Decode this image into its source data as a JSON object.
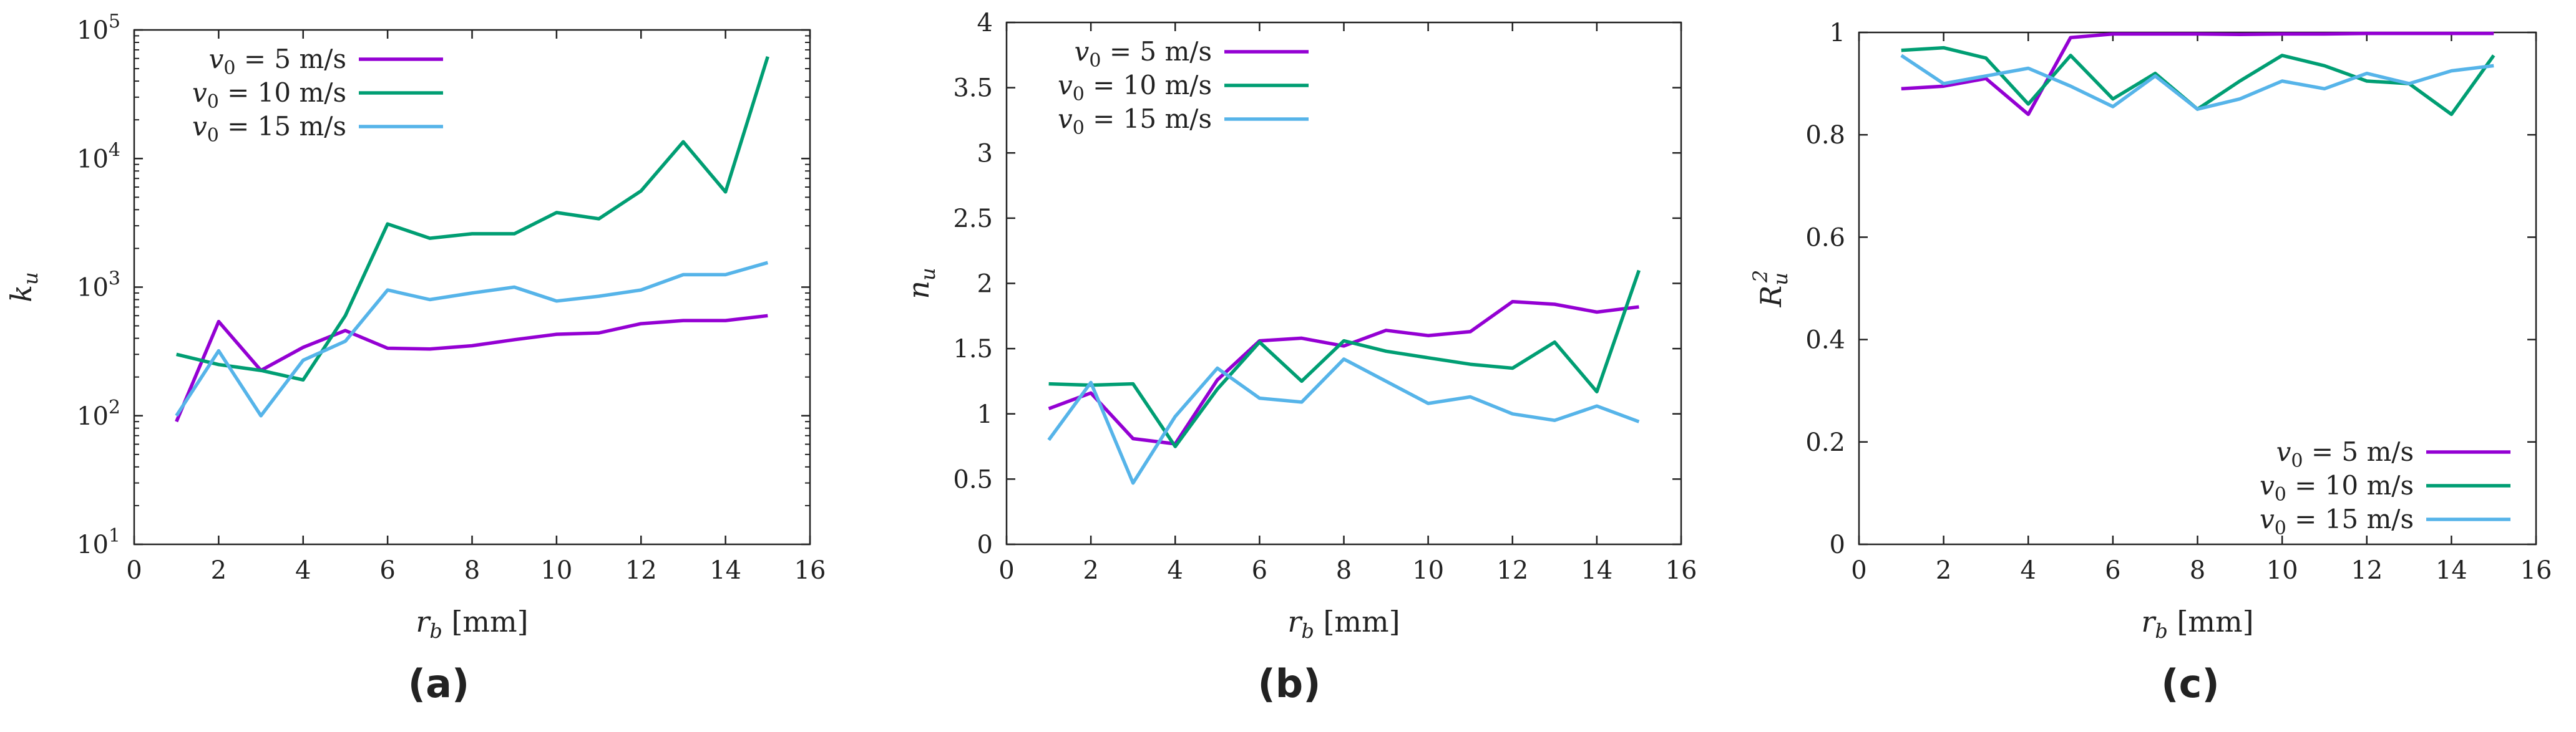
{
  "figure": {
    "colors": {
      "v5": "#9400D3",
      "v10": "#009E73",
      "v15": "#56B4E9",
      "axis": "#222222"
    }
  },
  "chart_data": [
    {
      "type": "line",
      "panel": "(a)",
      "xlabel": "r_b [mm]",
      "xlabel_main": "r",
      "xlabel_sub": "b",
      "xlabel_unit": " [mm]",
      "ylabel": "k_u",
      "ylabel_main": "k",
      "ylabel_sub": "u",
      "xlim": [
        0,
        16
      ],
      "ylim": [
        10,
        100000
      ],
      "yscale": "log",
      "xticks": [
        "0",
        "2",
        "4",
        "6",
        "8",
        "10",
        "12",
        "14",
        "16"
      ],
      "yticks": [
        {
          "base": "10",
          "exp": "1"
        },
        {
          "base": "10",
          "exp": "2"
        },
        {
          "base": "10",
          "exp": "3"
        },
        {
          "base": "10",
          "exp": "4"
        },
        {
          "base": "10",
          "exp": "5"
        }
      ],
      "legend_position": "top-left",
      "x": [
        1,
        2,
        3,
        4,
        5,
        6,
        7,
        8,
        9,
        10,
        11,
        12,
        13,
        14,
        15
      ],
      "series": [
        {
          "name": "v0 = 5 m/s",
          "label_main": "v",
          "label_sub": "0",
          "label_rest": " = 5 m/s",
          "color_key": "v5",
          "values": [
            90,
            540,
            225,
            340,
            460,
            335,
            330,
            350,
            390,
            430,
            440,
            520,
            550,
            550,
            600
          ]
        },
        {
          "name": "v0 = 10 m/s",
          "label_main": "v",
          "label_sub": "0",
          "label_rest": " = 10 m/s",
          "color_key": "v10",
          "values": [
            300,
            250,
            225,
            190,
            600,
            3100,
            2400,
            2600,
            2600,
            3800,
            3400,
            5600,
            13500,
            5500,
            62000
          ]
        },
        {
          "name": "v0 = 15 m/s",
          "label_main": "v",
          "label_sub": "0",
          "label_rest": " = 15 m/s",
          "color_key": "v15",
          "values": [
            100,
            320,
            100,
            270,
            380,
            950,
            800,
            900,
            1000,
            780,
            850,
            950,
            1250,
            1250,
            1550
          ]
        }
      ]
    },
    {
      "type": "line",
      "panel": "(b)",
      "xlabel": "r_b [mm]",
      "xlabel_main": "r",
      "xlabel_sub": "b",
      "xlabel_unit": " [mm]",
      "ylabel": "n_u",
      "ylabel_main": "n",
      "ylabel_sub": "u",
      "xlim": [
        0,
        16
      ],
      "ylim": [
        0,
        4
      ],
      "yscale": "linear",
      "xticks": [
        "0",
        "2",
        "4",
        "6",
        "8",
        "10",
        "12",
        "14",
        "16"
      ],
      "yticks": [
        "0",
        "0.5",
        "1",
        "1.5",
        "2",
        "2.5",
        "3",
        "3.5",
        "4"
      ],
      "legend_position": "top-left",
      "x": [
        1,
        2,
        3,
        4,
        5,
        6,
        7,
        8,
        9,
        10,
        11,
        12,
        13,
        14,
        15
      ],
      "series": [
        {
          "name": "v0 = 5 m/s",
          "label_main": "v",
          "label_sub": "0",
          "label_rest": " = 5 m/s",
          "color_key": "v5",
          "values": [
            1.04,
            1.16,
            0.81,
            0.77,
            1.26,
            1.56,
            1.58,
            1.52,
            1.64,
            1.6,
            1.63,
            1.86,
            1.84,
            1.78,
            1.82
          ]
        },
        {
          "name": "v0 = 10 m/s",
          "label_main": "v",
          "label_sub": "0",
          "label_rest": " = 10 m/s",
          "color_key": "v10",
          "values": [
            1.23,
            1.22,
            1.23,
            0.75,
            1.19,
            1.55,
            1.25,
            1.56,
            1.48,
            1.43,
            1.38,
            1.35,
            1.55,
            1.17,
            2.1
          ]
        },
        {
          "name": "v0 = 15 m/s",
          "label_main": "v",
          "label_sub": "0",
          "label_rest": " = 15 m/s",
          "color_key": "v15",
          "values": [
            0.8,
            1.24,
            0.47,
            0.98,
            1.35,
            1.12,
            1.09,
            1.42,
            1.25,
            1.08,
            1.13,
            1.0,
            0.95,
            1.06,
            0.94
          ]
        }
      ]
    },
    {
      "type": "line",
      "panel": "(c)",
      "xlabel": "r_b [mm]",
      "xlabel_main": "r",
      "xlabel_sub": "b",
      "xlabel_unit": " [mm]",
      "ylabel": "R_u^2",
      "ylabel_main": "R",
      "ylabel_sub": "u",
      "ylabel_sup": "2",
      "xlim": [
        0,
        16
      ],
      "ylim": [
        0,
        1
      ],
      "yscale": "linear",
      "xticks": [
        "0",
        "2",
        "4",
        "6",
        "8",
        "10",
        "12",
        "14",
        "16"
      ],
      "yticks": [
        "0",
        "0.2",
        "0.4",
        "0.6",
        "0.8",
        "1"
      ],
      "legend_position": "bottom-right",
      "x": [
        1,
        2,
        3,
        4,
        5,
        6,
        7,
        8,
        9,
        10,
        11,
        12,
        13,
        14,
        15
      ],
      "series": [
        {
          "name": "v0 = 5 m/s",
          "label_main": "v",
          "label_sub": "0",
          "label_rest": " = 5 m/s",
          "color_key": "v5",
          "values": [
            0.89,
            0.895,
            0.91,
            0.84,
            0.99,
            0.997,
            0.997,
            0.997,
            0.996,
            0.997,
            0.997,
            0.998,
            0.998,
            0.998,
            0.998
          ]
        },
        {
          "name": "v0 = 10 m/s",
          "label_main": "v",
          "label_sub": "0",
          "label_rest": " = 10 m/s",
          "color_key": "v10",
          "values": [
            0.965,
            0.97,
            0.95,
            0.86,
            0.955,
            0.87,
            0.92,
            0.85,
            0.905,
            0.955,
            0.935,
            0.905,
            0.9,
            0.84,
            0.955
          ]
        },
        {
          "name": "v0 = 15 m/s",
          "label_main": "v",
          "label_sub": "0",
          "label_rest": " = 15 m/s",
          "color_key": "v15",
          "values": [
            0.955,
            0.9,
            0.915,
            0.93,
            0.895,
            0.855,
            0.915,
            0.85,
            0.87,
            0.905,
            0.89,
            0.92,
            0.9,
            0.925,
            0.935
          ]
        }
      ]
    }
  ]
}
